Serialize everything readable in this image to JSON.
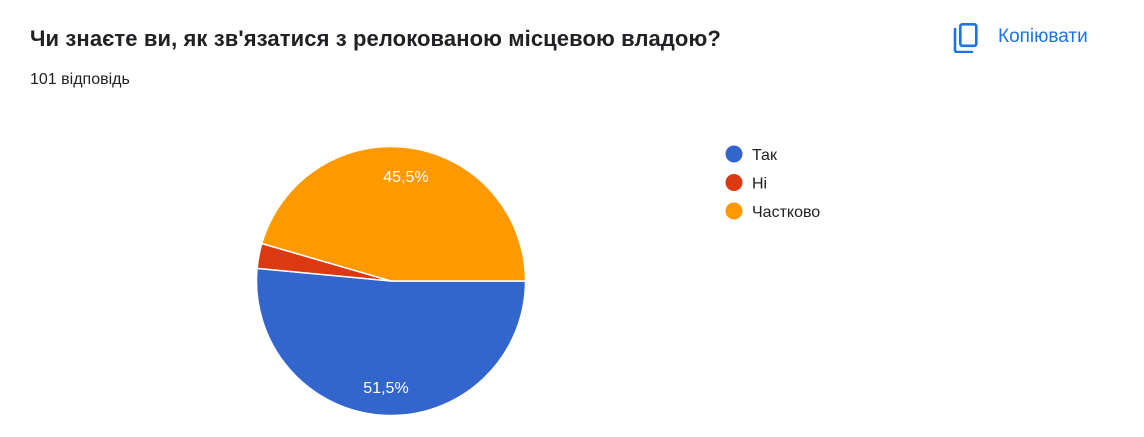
{
  "header": {
    "title": "Чи знаєте ви, як зв'язатися з релокованою місцевою владою?",
    "responses": "101 відповідь",
    "copy_label": "Копіювати",
    "copy_icon": "copy-icon"
  },
  "colors": {
    "accent": "#1a73e8",
    "tak": "#3366cc",
    "ni": "#dc3912",
    "chastkovo": "#ff9900"
  },
  "chart_data": {
    "type": "pie",
    "categories": [
      "Так",
      "Ні",
      "Частково"
    ],
    "values": [
      51.5,
      3.0,
      45.5
    ],
    "colors": [
      "#3366cc",
      "#dc3912",
      "#ff9900"
    ],
    "data_labels": [
      "51,5%",
      "",
      "45,5%"
    ],
    "legend": "right"
  }
}
